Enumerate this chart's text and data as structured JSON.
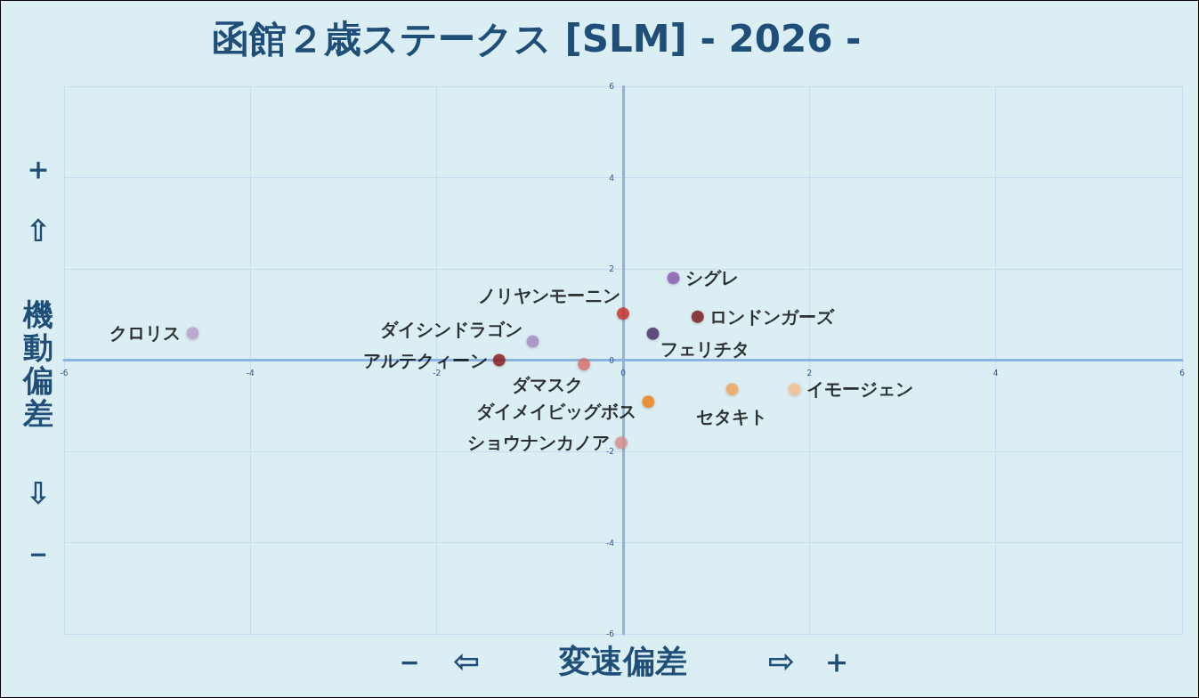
{
  "chart_data": {
    "type": "scatter",
    "title": "函館２歳ステークス [SLM] - 2026 -",
    "xlabel": "－ ⇦ 変速偏差 ⇨ ＋",
    "ylabel": "＋ ⇧ 機動偏差 ⇩ －",
    "xlim": [
      -6,
      6
    ],
    "ylim": [
      -6,
      6
    ],
    "xticks": [
      -6,
      -4,
      -2,
      0,
      2,
      4,
      6
    ],
    "yticks": [
      -6,
      -4,
      -2,
      0,
      2,
      4,
      6
    ],
    "grid": true,
    "marker": "circle",
    "series": [
      {
        "name": "クロリス",
        "color": "#b9a0cc",
        "x": [
          -4.62
        ],
        "values": [
          0.59
        ]
      },
      {
        "name": "ダイシンドラゴン",
        "color": "#a58bc4",
        "x": [
          -0.97
        ],
        "values": [
          0.41
        ]
      },
      {
        "name": "ノリヤンモーニン",
        "color": "#c9302c",
        "x": [
          0.0
        ],
        "values": [
          1.02
        ]
      },
      {
        "name": "アルテクィーン",
        "color": "#8b1a1a",
        "x": [
          -1.33
        ],
        "values": [
          0.0
        ]
      },
      {
        "name": "ダマスク",
        "color": "#d9706d",
        "x": [
          -0.42
        ],
        "values": [
          -0.09
        ]
      },
      {
        "name": "シグレ",
        "color": "#8a5ab0",
        "x": [
          0.54
        ],
        "values": [
          1.8
        ]
      },
      {
        "name": "ロンドンガーズ",
        "color": "#7a1518",
        "x": [
          0.8
        ],
        "values": [
          0.95
        ]
      },
      {
        "name": "フェリチタ",
        "color": "#4b2a6a",
        "x": [
          0.32
        ],
        "values": [
          0.58
        ]
      },
      {
        "name": "ダイメイビッグボス",
        "color": "#f07f1d",
        "x": [
          0.27
        ],
        "values": [
          -0.91
        ]
      },
      {
        "name": "セタキト",
        "color": "#f5a55e",
        "x": [
          1.17
        ],
        "values": [
          -0.64
        ]
      },
      {
        "name": "イモージェン",
        "color": "#f8c08e",
        "x": [
          1.84
        ],
        "values": [
          -0.64
        ]
      },
      {
        "name": "ショウナンカノア",
        "color": "#d99091",
        "x": [
          -0.02
        ],
        "values": [
          -1.81
        ]
      }
    ]
  }
}
